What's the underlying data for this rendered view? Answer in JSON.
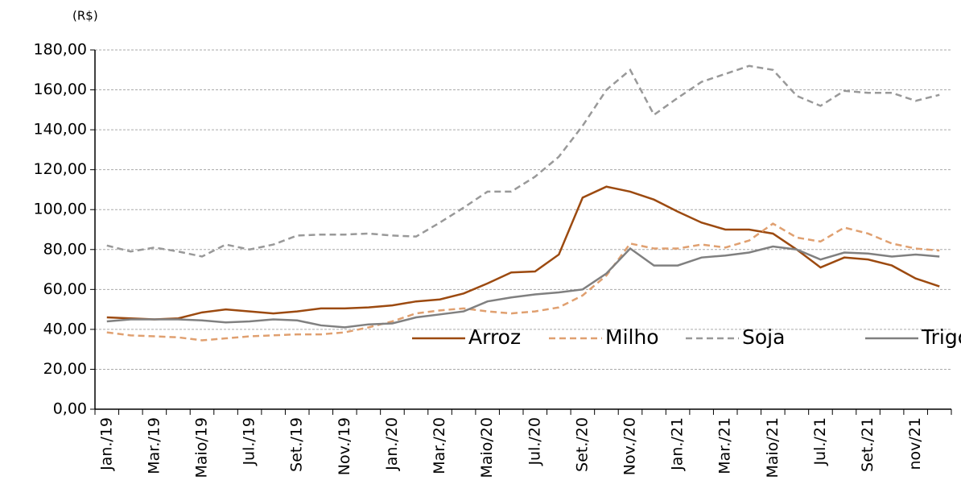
{
  "chart_data": {
    "type": "line",
    "y_unit_label": "(R$)",
    "categories": [
      "Jan./19",
      null,
      "Mar./19",
      null,
      "Maio/19",
      null,
      "Jul./19",
      null,
      "Set./19",
      null,
      "Nov./19",
      null,
      "Jan./20",
      null,
      "Mar./20",
      null,
      "Maio/20",
      null,
      "Jul./20",
      null,
      "Set./20",
      null,
      "Nov./20",
      null,
      "Jan./21",
      null,
      "Mar./21",
      null,
      "Maio/21",
      null,
      "Jul./21",
      null,
      "Set./21",
      null,
      "nov/21",
      null
    ],
    "series": [
      {
        "name": "Arroz",
        "color": "#9c4a10",
        "dash": "solid",
        "values": [
          46,
          45.5,
          45,
          45.5,
          48.5,
          50,
          49,
          48,
          49,
          50.5,
          50.5,
          51,
          52,
          54,
          55,
          58,
          63,
          68.5,
          69,
          77.5,
          106,
          111.5,
          109,
          105,
          99,
          93.5,
          90,
          90,
          88,
          80,
          71,
          76,
          75,
          72,
          65.5,
          61.5
        ]
      },
      {
        "name": "Milho",
        "color": "#e0a070",
        "dash": "dashed",
        "values": [
          38.5,
          37,
          36.5,
          36,
          34.5,
          35.5,
          36.5,
          37,
          37.5,
          37.5,
          38.5,
          41,
          44,
          48,
          49.5,
          50.5,
          49,
          48,
          49,
          51,
          57,
          67,
          83,
          80.5,
          80.5,
          82.5,
          81,
          84.5,
          93,
          86,
          84,
          91,
          88,
          83,
          80.5,
          79.5
        ]
      },
      {
        "name": "Soja",
        "color": "#999999",
        "dash": "dashed",
        "values": [
          82,
          79,
          81,
          79,
          76.5,
          82.5,
          80,
          82.5,
          87,
          87.5,
          87.5,
          88,
          87,
          86.5,
          93.5,
          101,
          109,
          109,
          116.5,
          126.5,
          142,
          160,
          170,
          147.5,
          156,
          164,
          168,
          172,
          170,
          157,
          152,
          159.5,
          158.5,
          158.5,
          154.5,
          157.5
        ]
      },
      {
        "name": "Trigo",
        "color": "#808080",
        "dash": "solid",
        "values": [
          44,
          45,
          45,
          45,
          44.5,
          43.5,
          44,
          45,
          44.5,
          42,
          41,
          42.5,
          43,
          46,
          47.5,
          49,
          54,
          56,
          57.5,
          58.5,
          60,
          68,
          80.5,
          72,
          72,
          76,
          77,
          78.5,
          81.5,
          80,
          75,
          78.5,
          78,
          76.5,
          77.5,
          76.5
        ]
      }
    ],
    "ylim": [
      0,
      180
    ],
    "yticks": [
      {
        "value": 0,
        "label": "0,00"
      },
      {
        "value": 20,
        "label": "20,00"
      },
      {
        "value": 40,
        "label": "40,00"
      },
      {
        "value": 60,
        "label": "60,00"
      },
      {
        "value": 80,
        "label": "80,00"
      },
      {
        "value": 100,
        "label": "100,00"
      },
      {
        "value": 120,
        "label": "120,00"
      },
      {
        "value": 140,
        "label": "140,00"
      },
      {
        "value": 160,
        "label": "160,00"
      },
      {
        "value": 180,
        "label": "180,00"
      }
    ],
    "grid": true,
    "legend": "bottom-right"
  }
}
